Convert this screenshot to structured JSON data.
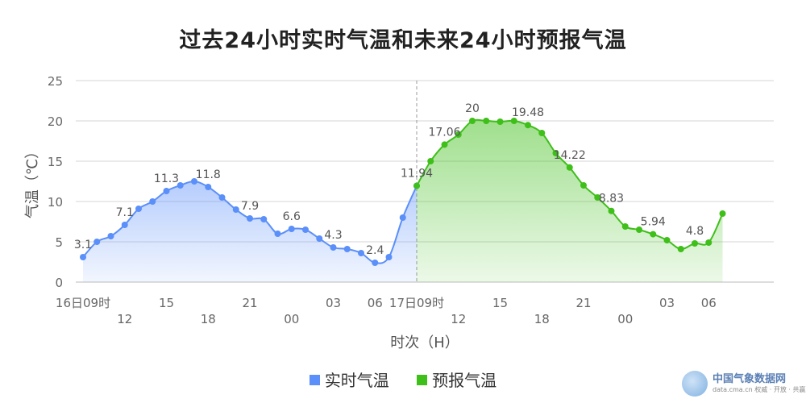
{
  "title": "过去24小时实时气温和未来24小时预报气温",
  "legend": [
    {
      "label": "实时气温",
      "color": "#5b8ff9"
    },
    {
      "label": "预报气温",
      "color": "#3fbf1a"
    }
  ],
  "watermark": {
    "site": "中国气象数据网",
    "url": "data.cma.cn 权威 · 开放 · 共赢"
  },
  "chart_data": {
    "type": "line",
    "title": "过去24小时实时气温和未来24小时预报气温",
    "xlabel": "时次（H）",
    "ylabel": "气温（℃）",
    "ylim": [
      0,
      25
    ],
    "yticks": [
      "0",
      "5",
      "10",
      "15",
      "20",
      "25"
    ],
    "xticks_row1": [
      "16日09时",
      "15",
      "21",
      "03",
      "06",
      "17日09时",
      "15",
      "21",
      "03",
      "06"
    ],
    "xticks_row2": [
      "12",
      "18",
      "00",
      "12",
      "18",
      "00"
    ],
    "grid": true,
    "legend_position": "bottom",
    "series": [
      {
        "name": "实时气温",
        "color": "#5b8ff9",
        "values": [
          3.1,
          5.0,
          5.7,
          7.1,
          9.1,
          10.0,
          11.3,
          12.0,
          12.5,
          11.8,
          10.5,
          9.0,
          7.9,
          7.8,
          6.0,
          6.6,
          6.5,
          5.4,
          4.3,
          4.1,
          3.6,
          2.4,
          3.1,
          8.0,
          11.94
        ],
        "labels": [
          "3.1",
          "",
          "",
          "7.1",
          "",
          "",
          "11.3",
          "",
          "",
          "11.8",
          "",
          "",
          "7.9",
          "",
          "",
          "6.6",
          "",
          "",
          "4.3",
          "",
          "",
          "2.4",
          "",
          "",
          "11.94"
        ]
      },
      {
        "name": "预报气温",
        "color": "#3fbf1a",
        "values": [
          11.94,
          15.0,
          17.06,
          18.3,
          20.0,
          20.0,
          19.9,
          20.0,
          19.48,
          18.5,
          16.0,
          14.22,
          12.0,
          10.5,
          8.83,
          6.9,
          6.5,
          5.94,
          5.2,
          4.1,
          4.8,
          4.9,
          8.5
        ],
        "labels": [
          "",
          "",
          "17.06",
          "",
          "20",
          "",
          "",
          "",
          "19.48",
          "",
          "",
          "14.22",
          "",
          "",
          "8.83",
          "",
          "",
          "5.94",
          "",
          "",
          "4.8",
          "",
          ""
        ]
      }
    ]
  }
}
